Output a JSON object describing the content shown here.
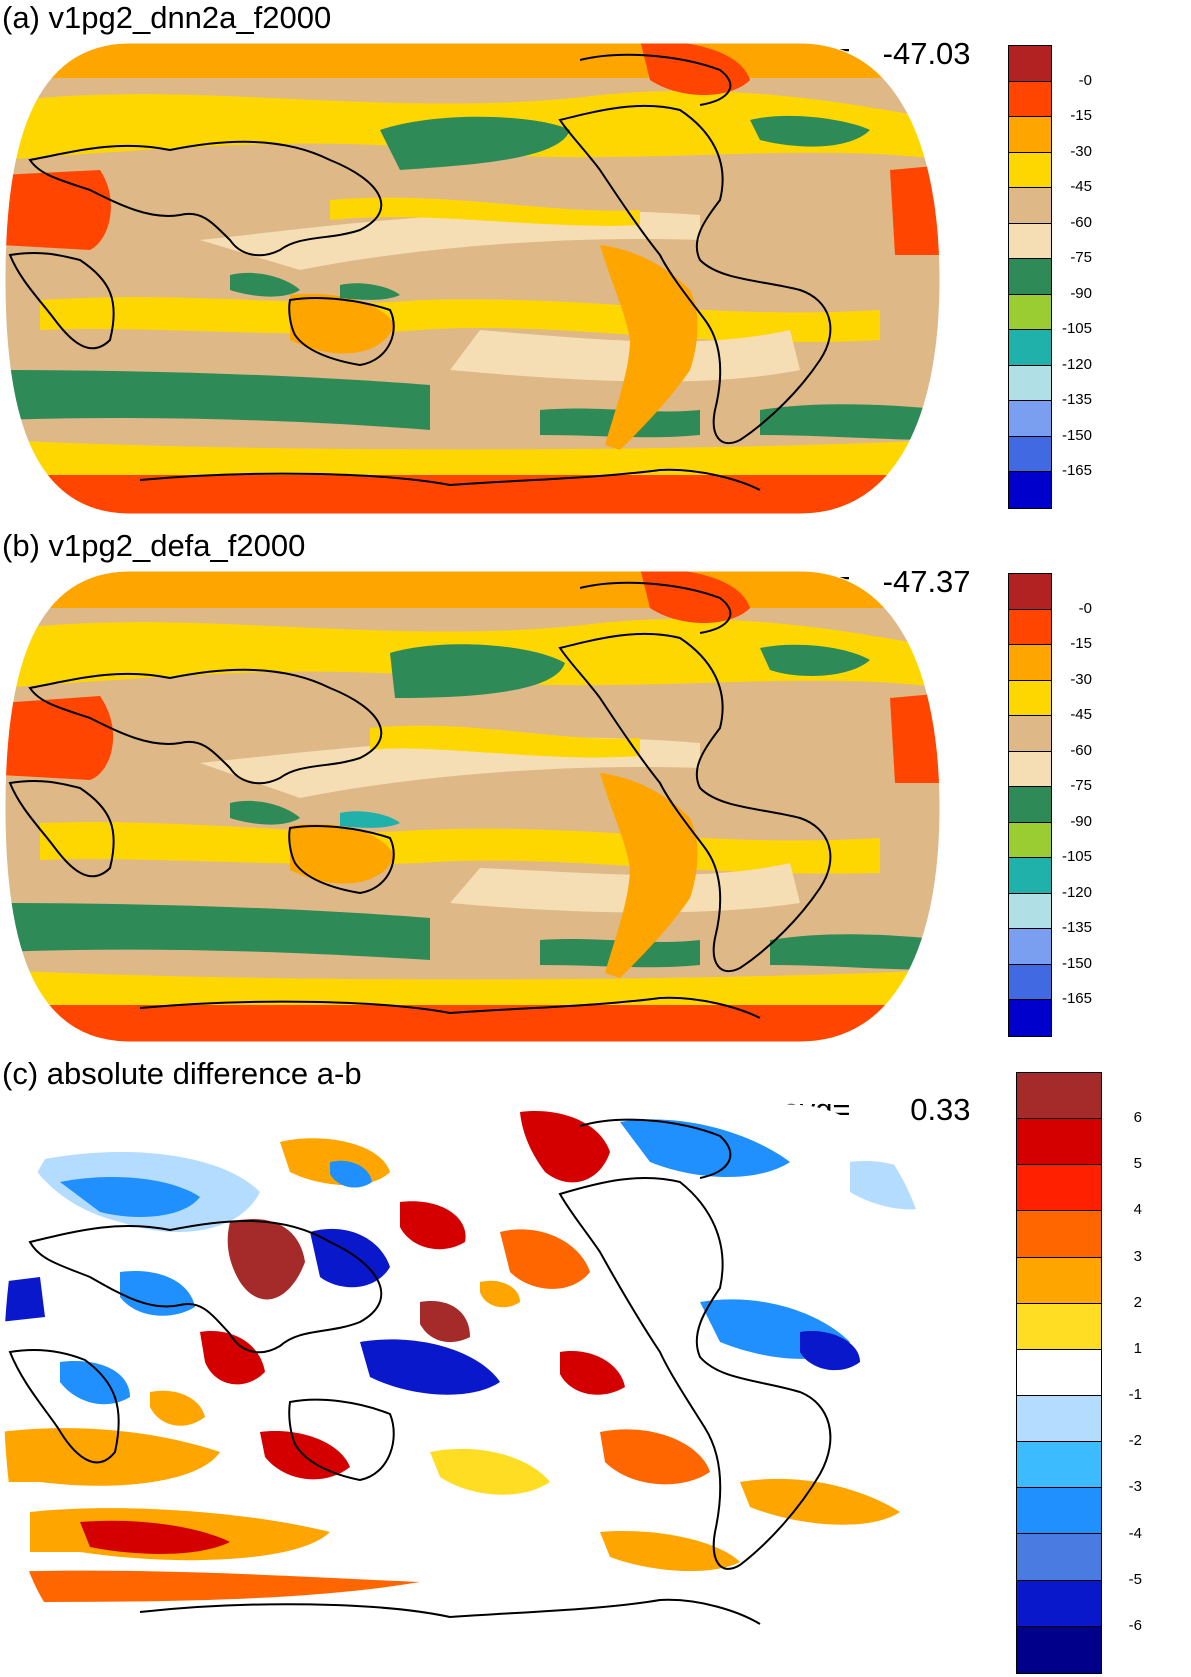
{
  "panels": [
    {
      "title": "(a) v1pg2_dnn2a_f2000",
      "avg_label": "avg=",
      "avg_value": "-47.03",
      "colorbar": {
        "labels": [
          "-0",
          "-15",
          "-30",
          "-45",
          "-60",
          "-75",
          "-90",
          "-105",
          "-120",
          "-135",
          "-150",
          "-165"
        ],
        "colors": [
          "#b22222",
          "#ff4500",
          "#ffa500",
          "#ffd700",
          "#deb887",
          "#f5deb3",
          "#2e8b57",
          "#9acd32",
          "#20b2aa",
          "#b0e0e6",
          "#7b9ff0",
          "#4169e1",
          "#0000cd"
        ]
      }
    },
    {
      "title": "(b) v1pg2_defa_f2000",
      "avg_label": "avg=",
      "avg_value": "-47.37",
      "colorbar": {
        "labels": [
          "-0",
          "-15",
          "-30",
          "-45",
          "-60",
          "-75",
          "-90",
          "-105",
          "-120",
          "-135",
          "-150",
          "-165"
        ],
        "colors": [
          "#b22222",
          "#ff4500",
          "#ffa500",
          "#ffd700",
          "#deb887",
          "#f5deb3",
          "#2e8b57",
          "#9acd32",
          "#20b2aa",
          "#b0e0e6",
          "#7b9ff0",
          "#4169e1",
          "#0000cd"
        ]
      }
    },
    {
      "title": "(c) absolute difference a-b",
      "avg_label": "avg=",
      "avg_value": "0.33",
      "colorbar": {
        "labels": [
          "6",
          "5",
          "4",
          "3",
          "2",
          "1",
          "-1",
          "-2",
          "-3",
          "-4",
          "-5",
          "-6"
        ],
        "colors": [
          "#a52a2a",
          "#d40000",
          "#ff2000",
          "#ff6600",
          "#ffa500",
          "#ffdd22",
          "#ffffff",
          "#b4dcff",
          "#3cbcff",
          "#2090ff",
          "#4a7be0",
          "#0a18cc",
          "#00008b"
        ]
      }
    }
  ]
}
